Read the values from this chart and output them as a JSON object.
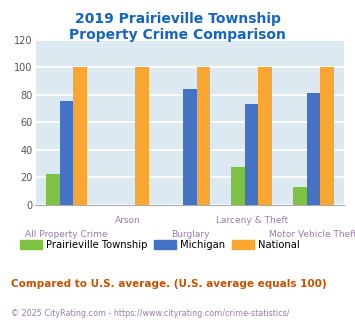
{
  "title_line1": "2019 Prairieville Township",
  "title_line2": "Property Crime Comparison",
  "title_color": "#1565c0",
  "categories": [
    "All Property Crime",
    "Arson",
    "Burglary",
    "Larceny & Theft",
    "Motor Vehicle Theft"
  ],
  "prairieville": [
    22,
    0,
    0,
    27,
    13
  ],
  "michigan": [
    75,
    0,
    84,
    73,
    81
  ],
  "national": [
    100,
    100,
    100,
    100,
    100
  ],
  "prairieville_color": "#7dc242",
  "michigan_color": "#4472c4",
  "national_color": "#faa732",
  "ylim": [
    0,
    120
  ],
  "yticks": [
    0,
    20,
    40,
    60,
    80,
    100,
    120
  ],
  "plot_bg": "#dce9f0",
  "grid_color": "#ffffff",
  "label_color": "#9b7bb0",
  "legend_labels": [
    "Prairieville Township",
    "Michigan",
    "National"
  ],
  "comparison_text": "Compared to U.S. average. (U.S. average equals 100)",
  "comparison_color": "#c85000",
  "copyright_text": "© 2025 CityRating.com - https://www.cityrating.com/crime-statistics/",
  "copyright_color": "#9b7bb0",
  "bar_width": 0.22,
  "row1_cats": [
    "Arson",
    "Larceny & Theft"
  ],
  "row2_cats": [
    "All Property Crime",
    "Burglary",
    "Motor Vehicle Theft"
  ]
}
